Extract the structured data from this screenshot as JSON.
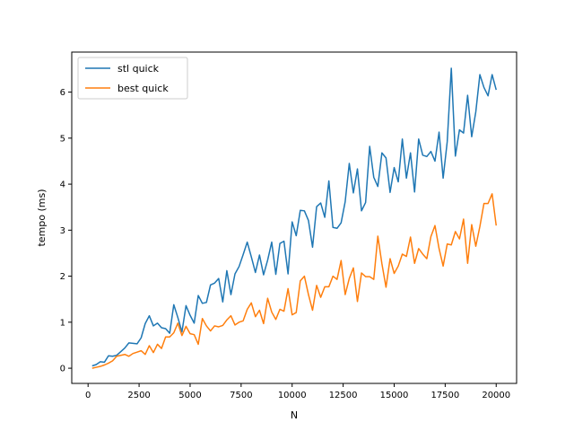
{
  "chart_data": {
    "type": "line",
    "title": "",
    "xlabel": "N",
    "ylabel": "tempo (ms)",
    "xlim": [
      -800,
      21000
    ],
    "ylim": [
      -0.33,
      6.87
    ],
    "xticks": [
      0,
      2500,
      5000,
      7500,
      10000,
      12500,
      15000,
      17500,
      20000
    ],
    "yticks": [
      0,
      1,
      2,
      3,
      4,
      5,
      6
    ],
    "grid": false,
    "legend": "top-left",
    "series": [
      {
        "name": "stl quick",
        "color": "#1f77b4",
        "x": [
          200,
          400,
          600,
          800,
          1000,
          1200,
          1400,
          1600,
          1800,
          2000,
          2200,
          2400,
          2600,
          2800,
          3000,
          3200,
          3400,
          3600,
          3800,
          4000,
          4200,
          4400,
          4600,
          4800,
          5000,
          5200,
          5400,
          5600,
          5800,
          6000,
          6200,
          6400,
          6600,
          6800,
          7000,
          7200,
          7400,
          7600,
          7800,
          8000,
          8200,
          8400,
          8600,
          8800,
          9000,
          9200,
          9400,
          9600,
          9800,
          10000,
          10200,
          10400,
          10600,
          10800,
          11000,
          11200,
          11400,
          11600,
          11800,
          12000,
          12200,
          12400,
          12600,
          12800,
          13000,
          13200,
          13400,
          13600,
          13800,
          14000,
          14200,
          14400,
          14600,
          14800,
          15000,
          15200,
          15400,
          15600,
          15800,
          16000,
          16200,
          16400,
          16600,
          16800,
          17000,
          17200,
          17400,
          17600,
          17800,
          18000,
          18200,
          18400,
          18600,
          18800,
          19000,
          19200,
          19400,
          19600,
          19800,
          20000
        ],
        "y": [
          0.05,
          0.08,
          0.14,
          0.13,
          0.27,
          0.26,
          0.28,
          0.36,
          0.44,
          0.55,
          0.54,
          0.53,
          0.66,
          0.97,
          1.14,
          0.92,
          0.98,
          0.88,
          0.86,
          0.76,
          1.38,
          1.1,
          0.79,
          1.36,
          1.15,
          0.98,
          1.58,
          1.41,
          1.43,
          1.81,
          1.85,
          1.95,
          1.44,
          2.12,
          1.6,
          2.05,
          2.21,
          2.47,
          2.74,
          2.42,
          2.08,
          2.46,
          2.03,
          2.35,
          2.74,
          2.04,
          2.71,
          2.76,
          2.05,
          3.18,
          2.88,
          3.43,
          3.42,
          3.21,
          2.63,
          3.51,
          3.59,
          3.28,
          4.07,
          3.06,
          3.04,
          3.16,
          3.62,
          4.45,
          3.81,
          4.33,
          3.42,
          3.6,
          4.82,
          4.15,
          3.95,
          4.68,
          4.57,
          3.82,
          4.36,
          4.05,
          4.98,
          4.13,
          4.68,
          3.83,
          4.98,
          4.63,
          4.6,
          4.71,
          4.5,
          5.13,
          4.13,
          4.92,
          6.52,
          4.61,
          5.18,
          5.11,
          5.93,
          5.03,
          5.57,
          6.38,
          6.1,
          5.92,
          6.38,
          6.05
        ]
      },
      {
        "name": "best quick",
        "color": "#ff7f0e",
        "x": [
          200,
          400,
          600,
          800,
          1000,
          1200,
          1400,
          1600,
          1800,
          2000,
          2200,
          2400,
          2600,
          2800,
          3000,
          3200,
          3400,
          3600,
          3800,
          4000,
          4200,
          4400,
          4600,
          4800,
          5000,
          5200,
          5400,
          5600,
          5800,
          6000,
          6200,
          6400,
          6600,
          6800,
          7000,
          7200,
          7400,
          7600,
          7800,
          8000,
          8200,
          8400,
          8600,
          8800,
          9000,
          9200,
          9400,
          9600,
          9800,
          10000,
          10200,
          10400,
          10600,
          10800,
          11000,
          11200,
          11400,
          11600,
          11800,
          12000,
          12200,
          12400,
          12600,
          12800,
          13000,
          13200,
          13400,
          13600,
          13800,
          14000,
          14200,
          14400,
          14600,
          14800,
          15000,
          15200,
          15400,
          15600,
          15800,
          16000,
          16200,
          16400,
          16600,
          16800,
          17000,
          17200,
          17400,
          17600,
          17800,
          18000,
          18200,
          18400,
          18600,
          18800,
          19000,
          19200,
          19400,
          19600,
          19800,
          20000
        ],
        "y": [
          0.0,
          0.02,
          0.04,
          0.07,
          0.11,
          0.16,
          0.26,
          0.28,
          0.3,
          0.26,
          0.32,
          0.35,
          0.38,
          0.3,
          0.49,
          0.34,
          0.52,
          0.43,
          0.68,
          0.68,
          0.77,
          0.98,
          0.71,
          0.91,
          0.75,
          0.73,
          0.52,
          1.08,
          0.92,
          0.81,
          0.92,
          0.9,
          0.93,
          1.05,
          1.14,
          0.94,
          1.0,
          1.03,
          1.28,
          1.42,
          1.12,
          1.26,
          0.97,
          1.52,
          1.22,
          1.06,
          1.28,
          1.24,
          1.73,
          1.16,
          1.21,
          1.9,
          2.0,
          1.6,
          1.26,
          1.8,
          1.54,
          1.77,
          1.77,
          2.0,
          1.93,
          2.34,
          1.6,
          1.95,
          2.18,
          1.45,
          2.07,
          1.99,
          1.99,
          1.93,
          2.87,
          2.27,
          1.76,
          2.38,
          2.06,
          2.22,
          2.48,
          2.43,
          2.85,
          2.28,
          2.6,
          2.48,
          2.38,
          2.86,
          3.1,
          2.6,
          2.22,
          2.7,
          2.68,
          2.97,
          2.81,
          3.24,
          2.28,
          3.12,
          2.65,
          3.08,
          3.58,
          3.58,
          3.79,
          3.1
        ]
      }
    ]
  }
}
